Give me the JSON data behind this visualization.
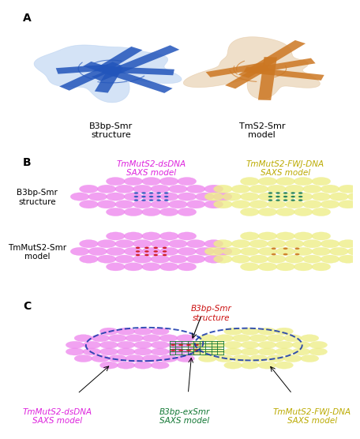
{
  "panel_A_label": "A",
  "panel_B_label": "B",
  "panel_C_label": "C",
  "left_structure_label": "B3bp-Smr\nstructure",
  "right_structure_label": "TmS2-Smr\nmodel",
  "col1_header": "TmMutS2-dsDNA\nSAXS model",
  "col2_header": "TmMutS2-FWJ-DNA\nSAXS model",
  "row1_label": "B3bp-Smr\nstructure",
  "row2_label": "TmMutS2-Smr\nmodel",
  "panelC_label_left": "TmMutS2-dsDNA\nSAXS model",
  "panelC_label_mid": "B3bp-exSmr\nSAXS model",
  "panelC_label_right": "TmMutS2-FWJ-DNA\nSAXS model",
  "panelC_top_label": "B3bp-Smr\nstructure",
  "blue_ribbon": "#2255bb",
  "blue_light": "#aac8ee",
  "orange_ribbon": "#cc7722",
  "orange_light": "#ddb888",
  "pink_color": "#ee88ee",
  "pink_dark": "#dd22dd",
  "yellow_color": "#eeee88",
  "yellow_dark": "#bbaa00",
  "green_color": "#117733",
  "red_color": "#cc1111",
  "navy_color": "#1133aa",
  "teal_color": "#117755",
  "background": "#ffffff",
  "label_fontsize": 8,
  "header_fontsize": 7.5,
  "panel_label_fontsize": 10
}
